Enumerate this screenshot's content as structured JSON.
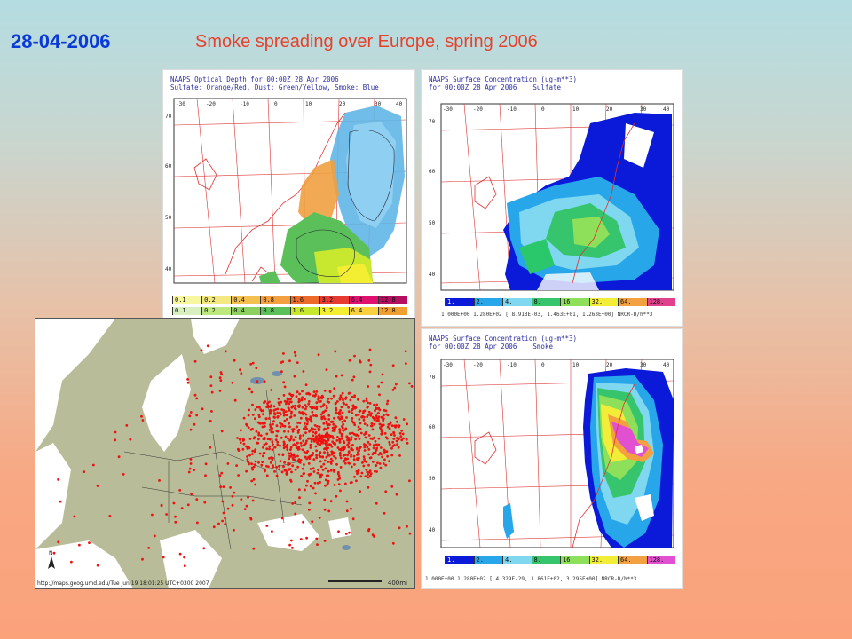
{
  "header": {
    "date": "28-04-2006",
    "title": "Smoke spreading over Europe, spring 2006"
  },
  "panels": {
    "optical_depth": {
      "head_line1": "NAAPS Optical Depth for 00:00Z 28 Apr 2006",
      "head_line2": "Sulfate: Orange/Red, Dust: Green/Yellow, Smoke: Blue",
      "scale_values": [
        "0.1",
        "0.2",
        "0.4",
        "0.8",
        "1.6",
        "3.2",
        "6.4",
        "12.8"
      ]
    },
    "sulfate": {
      "head_line1": "NAAPS Surface Concentration (ug-m**3)",
      "head_line2": "for 00:00Z 28 Apr 2006    Sulfate",
      "scale_values": [
        "1.",
        "2.",
        "4.",
        "8.",
        "16.",
        "32.",
        "64.",
        "128."
      ],
      "stats": "1.000E+00 1.280E+02    [ 8.913E-03, 1.463E+01, 1.263E+00] NRCR-D/h**3"
    },
    "smoke": {
      "head_line1": "NAAPS Surface Concentration (ug-m**3)",
      "head_line2": "for 00:00Z 28 Apr 2006    Smoke",
      "scale_values": [
        "1.",
        "2.",
        "4.",
        "8.",
        "16.",
        "32.",
        "64.",
        "128."
      ],
      "stats": "1.000E+00 1.280E+02    [ 4.329E-29, 1.861E+02, 3.295E+00] NRCR-D/h**3"
    },
    "fire_map": {
      "footer": "http://maps.geog.umd.edu/Tue Jun 19 18:01:25 UTC+0300 2007",
      "scale_label": "400mi"
    }
  },
  "colors": {
    "date": "#0a3ad6",
    "title": "#e8402a",
    "fire": "#ee1111",
    "land": "#b9bc98",
    "sea": "#ffffff",
    "grid": "#d33"
  }
}
